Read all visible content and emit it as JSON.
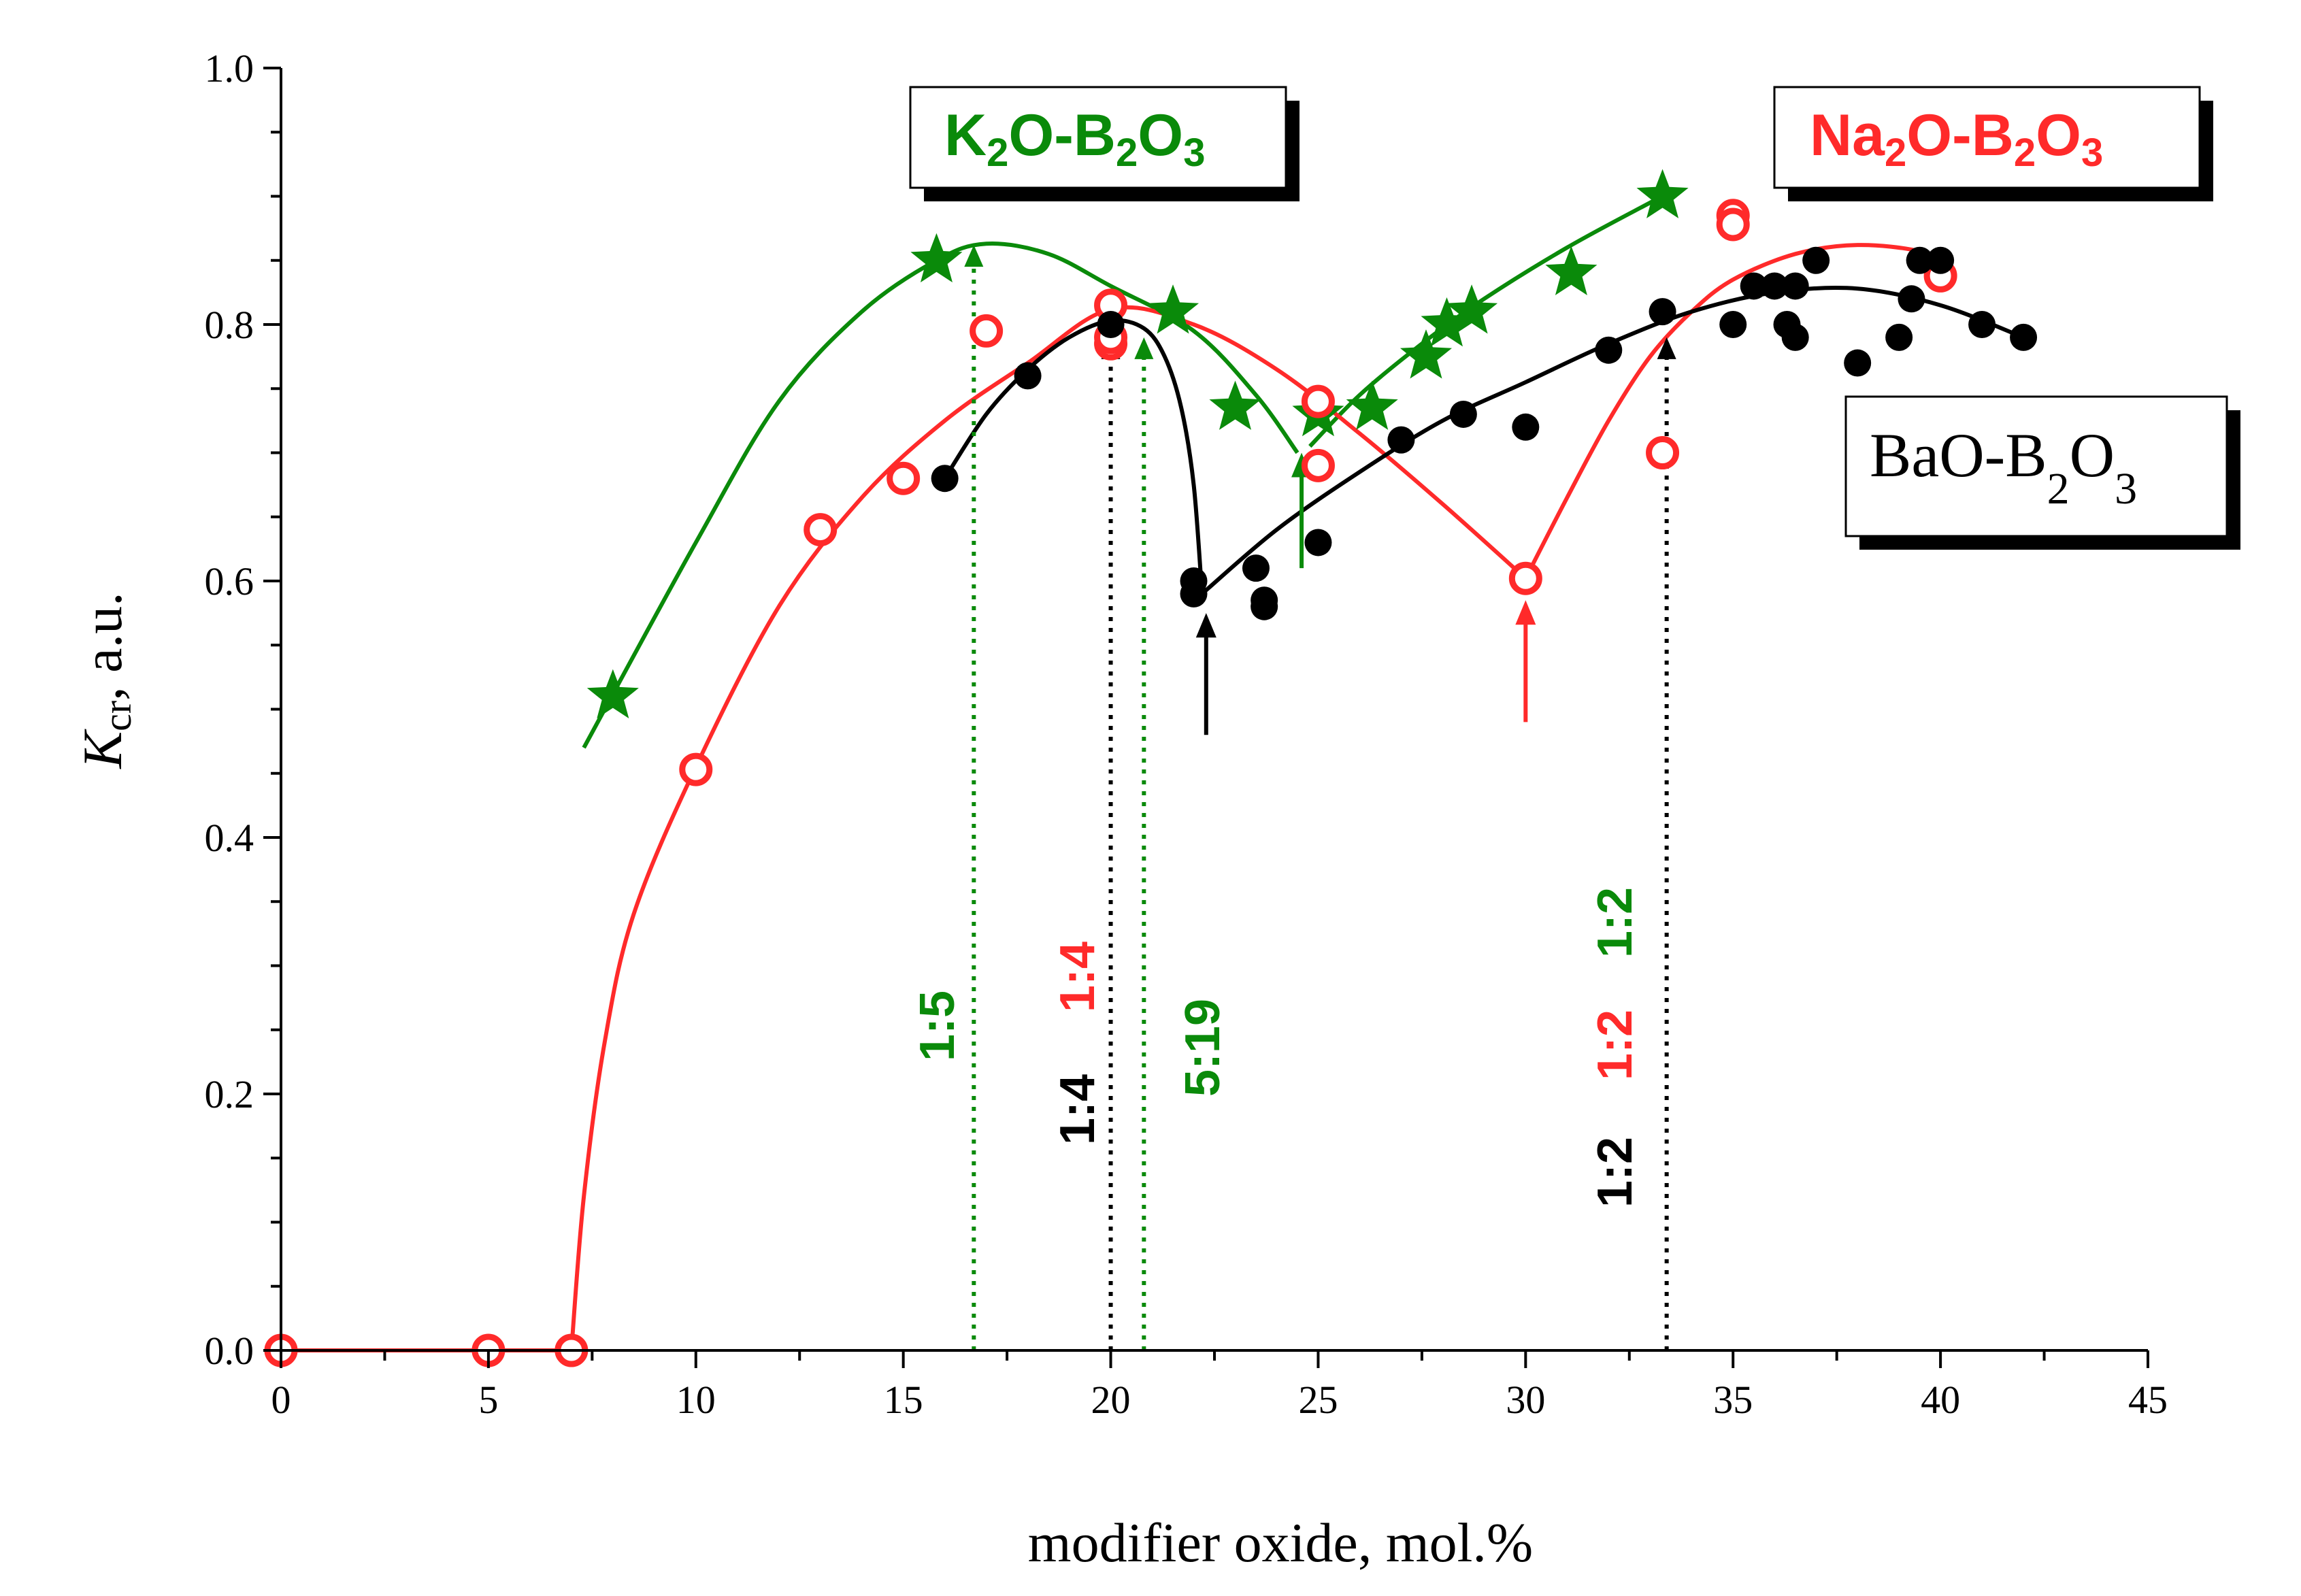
{
  "chart_data": {
    "type": "scatter",
    "xlabel": "modifier oxide, mol.%",
    "ylabel_main": "K",
    "ylabel_sub": "cr",
    "ylabel_rest": ", a.u.",
    "xlim": [
      0,
      45
    ],
    "ylim": [
      0,
      1.0
    ],
    "x_ticks": [
      0,
      5,
      10,
      15,
      20,
      25,
      30,
      35,
      40,
      45
    ],
    "y_ticks": [
      0.0,
      0.2,
      0.4,
      0.6,
      0.8,
      1.0
    ],
    "x_tick_labels": [
      "0",
      "5",
      "10",
      "15",
      "20",
      "25",
      "30",
      "35",
      "40",
      "45"
    ],
    "y_tick_labels": [
      "0.0",
      "0.2",
      "0.4",
      "0.6",
      "0.8",
      "1.0"
    ],
    "colors": {
      "K": "#0a8a0a",
      "Na": "#ff2a2a",
      "Ba": "#000000"
    },
    "series": [
      {
        "name": "K2O-B2O3",
        "marker": "star",
        "color": "#0a8a0a",
        "points": [
          [
            8,
            0.51
          ],
          [
            15.8,
            0.85
          ],
          [
            21.5,
            0.81
          ],
          [
            23,
            0.735
          ],
          [
            25,
            0.73
          ],
          [
            26.3,
            0.735
          ],
          [
            27.6,
            0.775
          ],
          [
            28.1,
            0.8
          ],
          [
            28.7,
            0.81
          ],
          [
            31.1,
            0.84
          ],
          [
            33.3,
            0.9
          ]
        ],
        "curves": [
          [
            [
              7.3,
              0.47
            ],
            [
              10,
              0.63
            ],
            [
              12,
              0.74
            ],
            [
              14,
              0.81
            ],
            [
              15.8,
              0.85
            ],
            [
              17,
              0.863
            ],
            [
              18.5,
              0.855
            ],
            [
              20,
              0.83
            ],
            [
              22,
              0.795
            ],
            [
              23.5,
              0.745
            ],
            [
              24.5,
              0.7
            ]
          ],
          [
            [
              24.8,
              0.705
            ],
            [
              26,
              0.745
            ],
            [
              27.5,
              0.785
            ],
            [
              29,
              0.82
            ],
            [
              31,
              0.86
            ],
            [
              33,
              0.895
            ],
            [
              33.6,
              0.905
            ]
          ]
        ]
      },
      {
        "name": "Na2O-B2O3",
        "marker": "open-circle",
        "color": "#ff2a2a",
        "points": [
          [
            0,
            0
          ],
          [
            5,
            0
          ],
          [
            7,
            0
          ],
          [
            10,
            0.453
          ],
          [
            13,
            0.64
          ],
          [
            15,
            0.68
          ],
          [
            17,
            0.795
          ],
          [
            20,
            0.785
          ],
          [
            20,
            0.79
          ],
          [
            20,
            0.815
          ],
          [
            25,
            0.74
          ],
          [
            25,
            0.69
          ],
          [
            30,
            0.602
          ],
          [
            33.3,
            0.7
          ],
          [
            35,
            0.885
          ],
          [
            35,
            0.878
          ],
          [
            40,
            0.838
          ]
        ],
        "curves": [
          [
            [
              0,
              0
            ],
            [
              7,
              0
            ]
          ],
          [
            [
              7,
              0
            ],
            [
              7.3,
              0.12
            ],
            [
              7.8,
              0.24
            ],
            [
              8.5,
              0.34
            ],
            [
              10,
              0.455
            ],
            [
              12,
              0.58
            ],
            [
              14,
              0.665
            ],
            [
              16,
              0.725
            ],
            [
              18,
              0.77
            ],
            [
              20,
              0.812
            ],
            [
              22,
              0.8
            ],
            [
              24,
              0.765
            ],
            [
              26,
              0.715
            ],
            [
              28,
              0.66
            ],
            [
              30,
              0.602
            ]
          ],
          [
            [
              30,
              0.602
            ],
            [
              31,
              0.665
            ],
            [
              32,
              0.725
            ],
            [
              33,
              0.775
            ],
            [
              34,
              0.81
            ],
            [
              35,
              0.835
            ],
            [
              36.5,
              0.855
            ],
            [
              38,
              0.862
            ],
            [
              39.5,
              0.857
            ],
            [
              40.1,
              0.845
            ]
          ]
        ]
      },
      {
        "name": "BaO-B2O3",
        "marker": "filled-circle",
        "color": "#000000",
        "points": [
          [
            16,
            0.68
          ],
          [
            18,
            0.76
          ],
          [
            20,
            0.8
          ],
          [
            22,
            0.6
          ],
          [
            22,
            0.59
          ],
          [
            23.5,
            0.61
          ],
          [
            23.7,
            0.58
          ],
          [
            23.7,
            0.585
          ],
          [
            25,
            0.63
          ],
          [
            27,
            0.71
          ],
          [
            28.5,
            0.73
          ],
          [
            30,
            0.72
          ],
          [
            32,
            0.78
          ],
          [
            33.3,
            0.81
          ],
          [
            35,
            0.8
          ],
          [
            35.5,
            0.83
          ],
          [
            36,
            0.83
          ],
          [
            36.3,
            0.8
          ],
          [
            36.5,
            0.79
          ],
          [
            36.5,
            0.83
          ],
          [
            37,
            0.85
          ],
          [
            38,
            0.77
          ],
          [
            39,
            0.79
          ],
          [
            39.3,
            0.82
          ],
          [
            39.5,
            0.85
          ],
          [
            40,
            0.85
          ],
          [
            41,
            0.8
          ],
          [
            42,
            0.79
          ]
        ],
        "curves": [
          [
            [
              16,
              0.68
            ],
            [
              17,
              0.73
            ],
            [
              18,
              0.765
            ],
            [
              19,
              0.79
            ],
            [
              20,
              0.803
            ],
            [
              20.8,
              0.797
            ],
            [
              21.3,
              0.775
            ],
            [
              21.7,
              0.735
            ],
            [
              22,
              0.675
            ],
            [
              22.2,
              0.59
            ]
          ],
          [
            [
              22.2,
              0.59
            ],
            [
              24,
              0.64
            ],
            [
              26,
              0.685
            ],
            [
              28,
              0.725
            ],
            [
              30,
              0.755
            ],
            [
              32,
              0.785
            ],
            [
              34,
              0.81
            ],
            [
              36,
              0.825
            ],
            [
              38,
              0.828
            ],
            [
              40,
              0.815
            ],
            [
              42,
              0.79
            ]
          ]
        ]
      }
    ],
    "dotted_lines": [
      {
        "x": 16.7,
        "y_top": 0.862,
        "color": "#0a8a0a",
        "label": "1:5"
      },
      {
        "x": 20,
        "y_top": 0.79,
        "color": "#000000",
        "label": "1:4"
      },
      {
        "x": 20.8,
        "y_top": 0.79,
        "color": "#0a8a0a",
        "label": "5:19"
      },
      {
        "x": 33.4,
        "y_top": 0.79,
        "color": "#000000",
        "label": "1:2"
      }
    ],
    "solid_arrows": [
      {
        "x": 22.3,
        "y_from": 0.48,
        "y_to": 0.575,
        "color": "#000000"
      },
      {
        "x": 30,
        "y_from": 0.49,
        "y_to": 0.585,
        "color": "#ff2a2a"
      },
      {
        "x": 24.6,
        "y_from": 0.61,
        "y_to": 0.7,
        "color": "#0a8a0a"
      }
    ],
    "ratio_labels": {
      "k_1_5": "1:5",
      "na_1_4": "1:4",
      "ba_1_4": "1:4",
      "k_5_19": "5:19",
      "ba_1_2": "1:2",
      "na_1_2": "1:2",
      "k_1_2": "1:2"
    },
    "legend": {
      "k": {
        "a": "K",
        "s1": "2",
        "b": "O-B",
        "s2": "2",
        "c": "O",
        "s3": "3"
      },
      "na": {
        "a": "Na",
        "s1": "2",
        "b": "O-B",
        "s2": "2",
        "c": "O",
        "s3": "3"
      },
      "ba": {
        "a": "BaO-B",
        "s1": "2",
        "b": "O",
        "s2": "3"
      }
    }
  }
}
